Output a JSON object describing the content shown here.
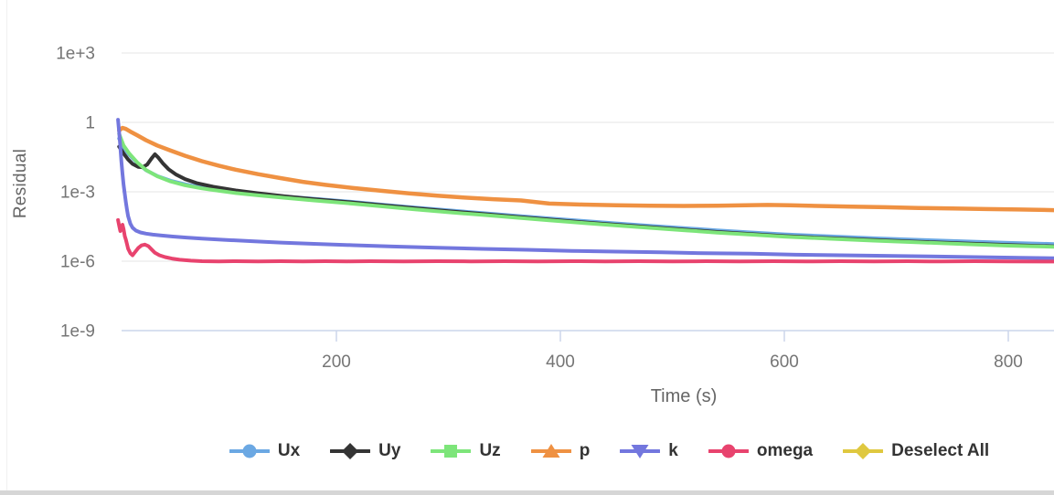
{
  "ui": {
    "background": "#ffffff",
    "grid_color": "#e4e4e4",
    "axis_line_color": "#ccd6eb",
    "tick_label_color": "#757575",
    "axis_title_color": "#666666",
    "legend_label_color": "#333333",
    "bottom_bar_color": "#d6d6d6"
  },
  "chart_data": {
    "type": "line",
    "title": "",
    "xlabel": "Time (s)",
    "ylabel": "Residual",
    "grid": true,
    "legend_position": "bottom",
    "x_axis": {
      "range": [
        0,
        841
      ],
      "ticks": [
        {
          "value": 200,
          "label": "200"
        },
        {
          "value": 400,
          "label": "400"
        },
        {
          "value": 600,
          "label": "600"
        },
        {
          "value": 800,
          "label": "800"
        }
      ]
    },
    "y_axis": {
      "scale": "log",
      "range": [
        1e-09,
        1000.0
      ],
      "ticks": [
        {
          "value": 1000.0,
          "label": "1e+3"
        },
        {
          "value": 1,
          "label": "1"
        },
        {
          "value": 0.001,
          "label": "1e-3"
        },
        {
          "value": 1e-06,
          "label": "1e-6"
        },
        {
          "value": 1e-09,
          "label": "1e-9"
        }
      ]
    },
    "series": [
      {
        "name": "Ux",
        "color": "#6BA8E3",
        "marker": "circle",
        "points": [
          [
            6,
            0.2
          ],
          [
            10,
            0.08
          ],
          [
            15,
            0.04
          ],
          [
            22,
            0.018
          ],
          [
            30,
            0.0085
          ],
          [
            40,
            0.0048
          ],
          [
            52,
            0.003
          ],
          [
            65,
            0.0021
          ],
          [
            80,
            0.00155
          ],
          [
            95,
            0.00122
          ],
          [
            110,
            0.001
          ],
          [
            130,
            0.0008
          ],
          [
            155,
            0.00062
          ],
          [
            180,
            0.0005
          ],
          [
            210,
            0.00038
          ],
          [
            240,
            0.00028
          ],
          [
            270,
            0.00021
          ],
          [
            300,
            0.000158
          ],
          [
            330,
            0.00012
          ],
          [
            360,
            9.2e-05
          ],
          [
            390,
            7.1e-05
          ],
          [
            420,
            5.5e-05
          ],
          [
            450,
            4.3e-05
          ],
          [
            480,
            3.4e-05
          ],
          [
            510,
            2.7e-05
          ],
          [
            540,
            2.15e-05
          ],
          [
            570,
            1.75e-05
          ],
          [
            600,
            1.45e-05
          ],
          [
            640,
            1.18e-05
          ],
          [
            680,
            9.8e-06
          ],
          [
            720,
            8.4e-06
          ],
          [
            760,
            7.2e-06
          ],
          [
            800,
            6.2e-06
          ],
          [
            841,
            5.5e-06
          ]
        ]
      },
      {
        "name": "Uy",
        "color": "#343434",
        "marker": "diamond",
        "points": [
          [
            6,
            0.09
          ],
          [
            10,
            0.045
          ],
          [
            14,
            0.025
          ],
          [
            18,
            0.016
          ],
          [
            23,
            0.012
          ],
          [
            27,
            0.0115
          ],
          [
            31,
            0.015
          ],
          [
            35,
            0.028
          ],
          [
            38,
            0.042
          ],
          [
            41,
            0.03
          ],
          [
            45,
            0.017
          ],
          [
            50,
            0.0095
          ],
          [
            57,
            0.0055
          ],
          [
            65,
            0.0035
          ],
          [
            75,
            0.0024
          ],
          [
            90,
            0.00165
          ],
          [
            110,
            0.00115
          ],
          [
            130,
            0.00086
          ],
          [
            155,
            0.00063
          ],
          [
            180,
            0.00048
          ],
          [
            210,
            0.00036
          ],
          [
            240,
            0.000265
          ],
          [
            270,
            0.000195
          ],
          [
            300,
            0.000145
          ],
          [
            330,
            0.00011
          ],
          [
            360,
            8.3e-05
          ],
          [
            390,
            6.3e-05
          ],
          [
            420,
            4.8e-05
          ],
          [
            450,
            3.75e-05
          ],
          [
            480,
            2.95e-05
          ],
          [
            510,
            2.32e-05
          ],
          [
            540,
            1.83e-05
          ],
          [
            570,
            1.48e-05
          ],
          [
            600,
            1.22e-05
          ],
          [
            640,
            9.9e-06
          ],
          [
            680,
            8.2e-06
          ],
          [
            720,
            6.9e-06
          ],
          [
            760,
            5.9e-06
          ],
          [
            800,
            5e-06
          ],
          [
            841,
            4.4e-06
          ]
        ]
      },
      {
        "name": "Uz",
        "color": "#7DE57A",
        "marker": "square",
        "points": [
          [
            6,
            0.32
          ],
          [
            10,
            0.1
          ],
          [
            15,
            0.045
          ],
          [
            22,
            0.019
          ],
          [
            30,
            0.0088
          ],
          [
            40,
            0.0047
          ],
          [
            52,
            0.0028
          ],
          [
            65,
            0.0019
          ],
          [
            80,
            0.0014
          ],
          [
            95,
            0.0011
          ],
          [
            110,
            0.00088
          ],
          [
            130,
            0.0007
          ],
          [
            155,
            0.00054
          ],
          [
            180,
            0.00042
          ],
          [
            210,
            0.00032
          ],
          [
            240,
            0.000235
          ],
          [
            270,
            0.000175
          ],
          [
            300,
            0.00013
          ],
          [
            330,
            0.0001
          ],
          [
            360,
            7.6e-05
          ],
          [
            390,
            5.8e-05
          ],
          [
            420,
            4.5e-05
          ],
          [
            450,
            3.5e-05
          ],
          [
            480,
            2.75e-05
          ],
          [
            510,
            2.18e-05
          ],
          [
            540,
            1.72e-05
          ],
          [
            570,
            1.4e-05
          ],
          [
            600,
            1.15e-05
          ],
          [
            640,
            9.3e-06
          ],
          [
            680,
            7.7e-06
          ],
          [
            720,
            6.5e-06
          ],
          [
            760,
            5.5e-06
          ],
          [
            800,
            4.7e-06
          ],
          [
            841,
            4.2e-06
          ]
        ]
      },
      {
        "name": "p",
        "color": "#EF9142",
        "marker": "triangle-up",
        "points": [
          [
            6,
            0.45
          ],
          [
            9,
            0.58
          ],
          [
            12,
            0.52
          ],
          [
            16,
            0.4
          ],
          [
            22,
            0.28
          ],
          [
            30,
            0.17
          ],
          [
            40,
            0.1
          ],
          [
            52,
            0.06
          ],
          [
            65,
            0.036
          ],
          [
            80,
            0.021
          ],
          [
            95,
            0.0135
          ],
          [
            110,
            0.009
          ],
          [
            130,
            0.0058
          ],
          [
            150,
            0.0039
          ],
          [
            170,
            0.0027
          ],
          [
            190,
            0.002
          ],
          [
            215,
            0.00145
          ],
          [
            240,
            0.0011
          ],
          [
            265,
            0.00085
          ],
          [
            290,
            0.00068
          ],
          [
            315,
            0.00056
          ],
          [
            340,
            0.00048
          ],
          [
            365,
            0.00042
          ],
          [
            390,
            0.00031
          ],
          [
            420,
            0.00028
          ],
          [
            450,
            0.00026
          ],
          [
            480,
            0.00025
          ],
          [
            510,
            0.000245
          ],
          [
            540,
            0.00025
          ],
          [
            565,
            0.00026
          ],
          [
            585,
            0.00027
          ],
          [
            605,
            0.00026
          ],
          [
            630,
            0.000245
          ],
          [
            660,
            0.00023
          ],
          [
            690,
            0.000215
          ],
          [
            720,
            0.0002
          ],
          [
            750,
            0.00019
          ],
          [
            780,
            0.00018
          ],
          [
            810,
            0.000172
          ],
          [
            841,
            0.00016
          ]
        ]
      },
      {
        "name": "k",
        "color": "#7377DE",
        "marker": "triangle-down",
        "points": [
          [
            5,
            1.3
          ],
          [
            6,
            0.4
          ],
          [
            7,
            0.09
          ],
          [
            8,
            0.02
          ],
          [
            9,
            0.006
          ],
          [
            10,
            0.002
          ],
          [
            11,
            0.0008
          ],
          [
            12,
            0.00035
          ],
          [
            13,
            0.00017
          ],
          [
            14,
            9e-05
          ],
          [
            16,
            4.2e-05
          ],
          [
            18,
            2.8e-05
          ],
          [
            21,
            2.1e-05
          ],
          [
            25,
            1.75e-05
          ],
          [
            30,
            1.55e-05
          ],
          [
            36,
            1.4e-05
          ],
          [
            44,
            1.28e-05
          ],
          [
            54,
            1.16e-05
          ],
          [
            66,
            1.05e-05
          ],
          [
            80,
            9.5e-06
          ],
          [
            100,
            8.4e-06
          ],
          [
            125,
            7.3e-06
          ],
          [
            150,
            6.4e-06
          ],
          [
            180,
            5.6e-06
          ],
          [
            215,
            4.9e-06
          ],
          [
            250,
            4.3e-06
          ],
          [
            290,
            3.8e-06
          ],
          [
            330,
            3.4e-06
          ],
          [
            370,
            3.1e-06
          ],
          [
            410,
            2.8e-06
          ],
          [
            450,
            2.6e-06
          ],
          [
            490,
            2.4e-06
          ],
          [
            530,
            2.2e-06
          ],
          [
            570,
            2.1e-06
          ],
          [
            610,
            1.9e-06
          ],
          [
            650,
            1.8e-06
          ],
          [
            690,
            1.7e-06
          ],
          [
            730,
            1.6e-06
          ],
          [
            770,
            1.5e-06
          ],
          [
            810,
            1.4e-06
          ],
          [
            841,
            1.35e-06
          ]
        ]
      },
      {
        "name": "omega",
        "color": "#E8436E",
        "marker": "circle",
        "points": [
          [
            5,
            6e-05
          ],
          [
            6,
            3.5e-05
          ],
          [
            7,
            2e-05
          ],
          [
            8,
            2.8e-05
          ],
          [
            9,
            3.8e-05
          ],
          [
            10,
            2.4e-05
          ],
          [
            11,
            1.2e-05
          ],
          [
            12,
            8.5e-06
          ],
          [
            13,
            5.5e-06
          ],
          [
            14,
            3.5e-06
          ],
          [
            16,
            2.2e-06
          ],
          [
            18,
            1.8e-06
          ],
          [
            20,
            2.4e-06
          ],
          [
            23,
            3.7e-06
          ],
          [
            26,
            4.8e-06
          ],
          [
            29,
            5.2e-06
          ],
          [
            32,
            4.5e-06
          ],
          [
            35,
            3.2e-06
          ],
          [
            38,
            2.3e-06
          ],
          [
            42,
            1.8e-06
          ],
          [
            47,
            1.5e-06
          ],
          [
            53,
            1.3e-06
          ],
          [
            60,
            1.15e-06
          ],
          [
            70,
            1.05e-06
          ],
          [
            80,
            1e-06
          ],
          [
            95,
            9.7e-07
          ],
          [
            110,
            1e-06
          ],
          [
            130,
            9.8e-07
          ],
          [
            150,
            1e-06
          ],
          [
            170,
            9.7e-07
          ],
          [
            190,
            1e-06
          ],
          [
            210,
            9.8e-07
          ],
          [
            230,
            1e-06
          ],
          [
            260,
            9.7e-07
          ],
          [
            290,
            1e-06
          ],
          [
            320,
            9.8e-07
          ],
          [
            350,
            1e-06
          ],
          [
            380,
            9.7e-07
          ],
          [
            410,
            1e-06
          ],
          [
            440,
            9.8e-07
          ],
          [
            470,
            1e-06
          ],
          [
            500,
            9.7e-07
          ],
          [
            530,
            1e-06
          ],
          [
            560,
            9.8e-07
          ],
          [
            590,
            1e-06
          ],
          [
            620,
            9.7e-07
          ],
          [
            650,
            1e-06
          ],
          [
            680,
            9.8e-07
          ],
          [
            710,
            1e-06
          ],
          [
            740,
            9.7e-07
          ],
          [
            770,
            1e-06
          ],
          [
            800,
            9.8e-07
          ],
          [
            841,
            9.6e-07
          ]
        ]
      },
      {
        "name": "Deselect All",
        "color": "#DFC83F",
        "marker": "diamond",
        "points": []
      }
    ]
  }
}
